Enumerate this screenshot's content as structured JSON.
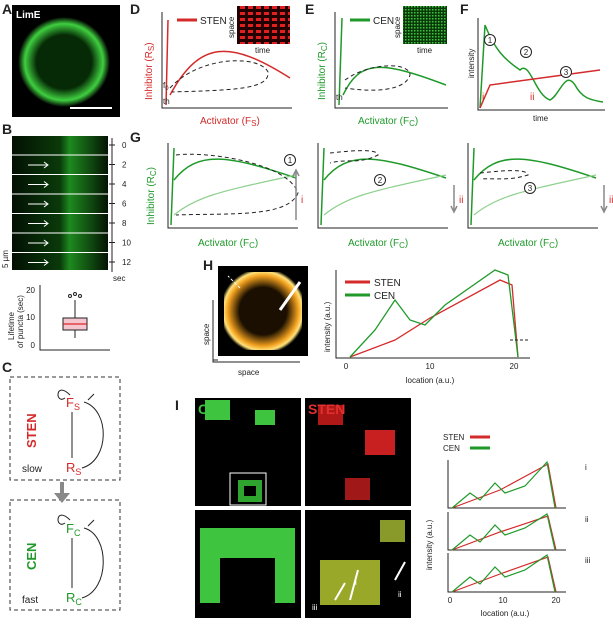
{
  "A": {
    "letter": "A",
    "label": "LimE"
  },
  "B": {
    "letter": "B",
    "times": [
      "0",
      "2",
      "4",
      "6",
      "8",
      "10",
      "12"
    ],
    "unit": "sec",
    "scale": "5 µm",
    "boxplot": {
      "ylabel": [
        "Lifetime",
        "of puncta (sec)"
      ],
      "yticks": [
        "0",
        "10",
        "20"
      ]
    }
  },
  "C": {
    "letter": "C",
    "top": {
      "name": "STEN",
      "activator": "F",
      "activator_sub": "S",
      "inhibitor": "R",
      "inhibitor_sub": "S",
      "speed": "slow"
    },
    "bottom": {
      "name": "CEN",
      "activator": "F",
      "activator_sub": "C",
      "inhibitor": "R",
      "inhibitor_sub": "C",
      "speed": "fast"
    }
  },
  "D": {
    "letter": "D",
    "legend": "STEN",
    "ylabel": [
      "Inhibitor (R",
      "S",
      ")"
    ],
    "xlabel": [
      "Activator (F",
      "S",
      ")"
    ],
    "inset_y": "space",
    "inset_x": "time",
    "marks": [
      "f",
      "0",
      "th"
    ]
  },
  "E": {
    "letter": "E",
    "legend": "CEN",
    "ylabel": [
      "Inhibitor (R",
      "C",
      ")"
    ],
    "xlabel": [
      "Activator (F",
      "C",
      ")"
    ],
    "inset_y": "space",
    "inset_x": "time",
    "marks": [
      "th"
    ]
  },
  "F": {
    "letter": "F",
    "ylabel": "intensity",
    "xlabel": "time",
    "circles": [
      "1",
      "2",
      "3"
    ],
    "phases": [
      "i",
      "ii"
    ]
  },
  "G": {
    "letter": "G",
    "ylabel": [
      "Inhibitor (R",
      "C",
      ")"
    ],
    "panels": [
      {
        "xlabel": [
          "Activator (F",
          "C",
          ")"
        ],
        "circle": "1",
        "arrow": "i"
      },
      {
        "xlabel": [
          "Activator (F",
          "C",
          ")"
        ],
        "circle": "2",
        "arrow": "ii"
      },
      {
        "xlabel": [
          "Activator (F",
          "C",
          ")"
        ],
        "circle": "3",
        "arrow": "ii"
      }
    ]
  },
  "H": {
    "letter": "H",
    "image_y": "space",
    "image_x": "space",
    "legend": [
      "STEN",
      "CEN"
    ],
    "ylabel": "intensity (a.u.)",
    "xlabel": "location (a.u.)",
    "xticks": [
      "0",
      "10",
      "20"
    ]
  },
  "I": {
    "letter": "I",
    "image_labels": [
      "CEN",
      "STEN"
    ],
    "legend": [
      "STEN",
      "CEN"
    ],
    "rows": [
      "i",
      "ii",
      "iii"
    ],
    "ylabel": "intensity (a.u.)",
    "xlabel": "location (a.u.)",
    "xticks": [
      "0",
      "10",
      "20"
    ],
    "roi": [
      "iii",
      "i",
      "ii"
    ]
  }
}
